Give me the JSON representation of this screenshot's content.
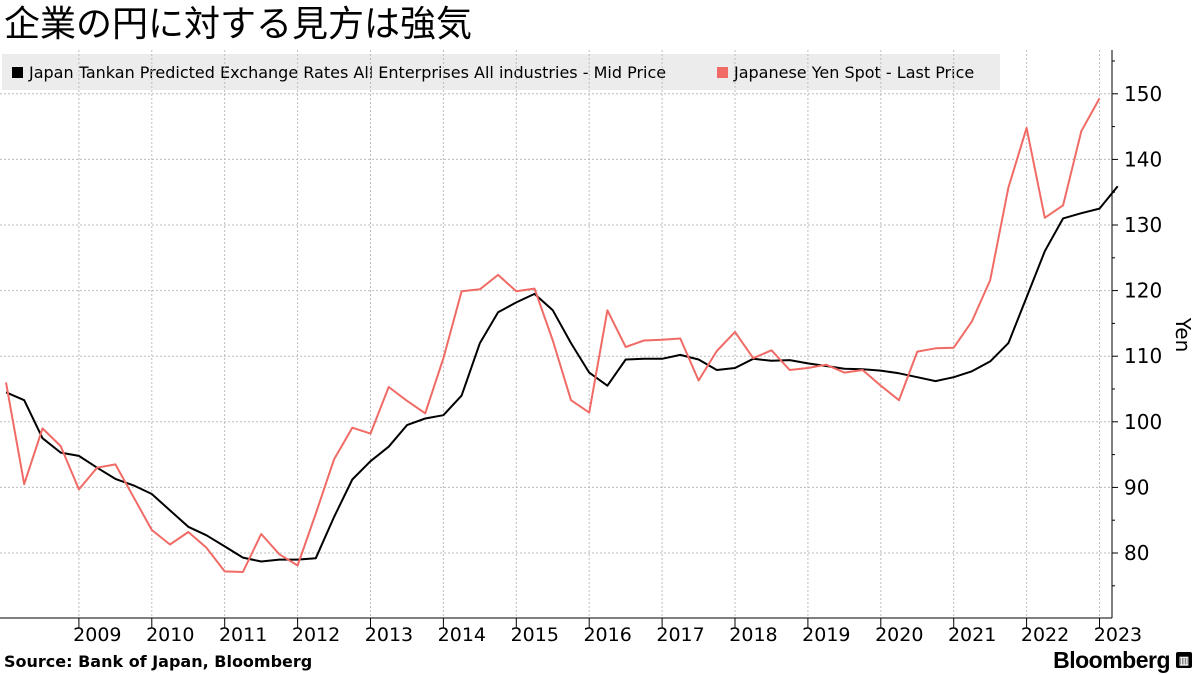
{
  "title": "企業の円に対する見方は強気",
  "source": "Source:  Bank of Japan, Bloomberg",
  "brand": "Bloomberg",
  "chart_data": {
    "type": "line",
    "title": "企業の円に対する見方は強気",
    "ylabel": "Yen",
    "xlabel": "",
    "ylim": [
      70,
      157
    ],
    "xlim": [
      2008.0,
      2023.6
    ],
    "y_ticks": [
      80,
      90,
      100,
      110,
      120,
      130,
      140,
      150
    ],
    "x_ticks": [
      "2009",
      "2010",
      "2011",
      "2012",
      "2013",
      "2014",
      "2015",
      "2016",
      "2017",
      "2018",
      "2019",
      "2020",
      "2021",
      "2022",
      "2023"
    ],
    "grid": true,
    "legend_position": "top-left",
    "series": [
      {
        "name": "Japan Tankan Predicted Exchange Rates All Enterprises All industries - Mid Price",
        "color": "#000000",
        "points": [
          [
            2008.0,
            104.5
          ],
          [
            2008.25,
            103.3
          ],
          [
            2008.5,
            97.5
          ],
          [
            2008.75,
            95.3
          ],
          [
            2009.0,
            94.8
          ],
          [
            2009.25,
            93.0
          ],
          [
            2009.5,
            91.3
          ],
          [
            2009.75,
            90.3
          ],
          [
            2010.0,
            89.0
          ],
          [
            2010.25,
            86.5
          ],
          [
            2010.5,
            84.0
          ],
          [
            2010.75,
            82.7
          ],
          [
            2011.0,
            81.0
          ],
          [
            2011.25,
            79.3
          ],
          [
            2011.5,
            78.7
          ],
          [
            2011.75,
            79.0
          ],
          [
            2012.0,
            79.0
          ],
          [
            2012.25,
            79.2
          ],
          [
            2012.5,
            85.5
          ],
          [
            2012.75,
            91.2
          ],
          [
            2013.0,
            94.0
          ],
          [
            2013.25,
            96.2
          ],
          [
            2013.5,
            99.5
          ],
          [
            2013.75,
            100.5
          ],
          [
            2014.0,
            101.0
          ],
          [
            2014.25,
            104.0
          ],
          [
            2014.5,
            112.0
          ],
          [
            2014.75,
            116.7
          ],
          [
            2015.0,
            118.2
          ],
          [
            2015.25,
            119.5
          ],
          [
            2015.5,
            117.0
          ],
          [
            2015.75,
            112.0
          ],
          [
            2016.0,
            107.5
          ],
          [
            2016.25,
            105.5
          ],
          [
            2016.5,
            109.5
          ],
          [
            2016.75,
            109.6
          ],
          [
            2017.0,
            109.6
          ],
          [
            2017.25,
            110.2
          ],
          [
            2017.5,
            109.5
          ],
          [
            2017.75,
            107.9
          ],
          [
            2018.0,
            108.2
          ],
          [
            2018.25,
            109.6
          ],
          [
            2018.5,
            109.3
          ],
          [
            2018.75,
            109.4
          ],
          [
            2019.0,
            108.9
          ],
          [
            2019.25,
            108.5
          ],
          [
            2019.5,
            108.1
          ],
          [
            2019.75,
            108.0
          ],
          [
            2020.0,
            107.8
          ],
          [
            2020.25,
            107.4
          ],
          [
            2020.5,
            106.8
          ],
          [
            2020.75,
            106.2
          ],
          [
            2021.0,
            106.8
          ],
          [
            2021.25,
            107.7
          ],
          [
            2021.5,
            109.2
          ],
          [
            2021.75,
            112.0
          ],
          [
            2022.0,
            119.0
          ],
          [
            2022.25,
            126.0
          ],
          [
            2022.5,
            131.0
          ],
          [
            2022.75,
            131.8
          ],
          [
            2023.0,
            132.5
          ],
          [
            2023.25,
            135.9
          ]
        ]
      },
      {
        "name": "Japanese Yen Spot - Last Price",
        "color": "#f06b66",
        "points": [
          [
            2008.0,
            106.0
          ],
          [
            2008.25,
            90.5
          ],
          [
            2008.5,
            99.0
          ],
          [
            2008.75,
            96.3
          ],
          [
            2009.0,
            89.7
          ],
          [
            2009.25,
            93.0
          ],
          [
            2009.5,
            93.5
          ],
          [
            2009.75,
            88.5
          ],
          [
            2010.0,
            83.5
          ],
          [
            2010.25,
            81.3
          ],
          [
            2010.5,
            83.2
          ],
          [
            2010.75,
            80.8
          ],
          [
            2011.0,
            77.2
          ],
          [
            2011.25,
            77.1
          ],
          [
            2011.5,
            82.9
          ],
          [
            2011.75,
            79.8
          ],
          [
            2012.0,
            78.1
          ],
          [
            2012.25,
            86.0
          ],
          [
            2012.5,
            94.3
          ],
          [
            2012.75,
            99.1
          ],
          [
            2013.0,
            98.2
          ],
          [
            2013.25,
            105.3
          ],
          [
            2013.5,
            103.2
          ],
          [
            2013.75,
            101.3
          ],
          [
            2014.0,
            109.7
          ],
          [
            2014.25,
            119.9
          ],
          [
            2014.5,
            120.2
          ],
          [
            2014.75,
            122.4
          ],
          [
            2015.0,
            119.9
          ],
          [
            2015.25,
            120.3
          ],
          [
            2015.5,
            112.4
          ],
          [
            2015.75,
            103.3
          ],
          [
            2016.0,
            101.4
          ],
          [
            2016.25,
            117.0
          ],
          [
            2016.5,
            111.4
          ],
          [
            2016.75,
            112.4
          ],
          [
            2017.0,
            112.5
          ],
          [
            2017.25,
            112.7
          ],
          [
            2017.5,
            106.3
          ],
          [
            2017.75,
            110.8
          ],
          [
            2018.0,
            113.7
          ],
          [
            2018.25,
            109.7
          ],
          [
            2018.5,
            110.9
          ],
          [
            2018.75,
            107.9
          ],
          [
            2019.0,
            108.2
          ],
          [
            2019.25,
            108.7
          ],
          [
            2019.5,
            107.5
          ],
          [
            2019.75,
            107.9
          ],
          [
            2020.0,
            105.5
          ],
          [
            2020.25,
            103.3
          ],
          [
            2020.5,
            110.7
          ],
          [
            2020.75,
            111.2
          ],
          [
            2021.0,
            111.3
          ],
          [
            2021.25,
            115.3
          ],
          [
            2021.5,
            121.6
          ],
          [
            2021.75,
            135.7
          ],
          [
            2022.0,
            144.8
          ],
          [
            2022.25,
            131.1
          ],
          [
            2022.5,
            133.0
          ],
          [
            2022.75,
            144.3
          ],
          [
            2023.0,
            149.3
          ]
        ]
      }
    ]
  }
}
